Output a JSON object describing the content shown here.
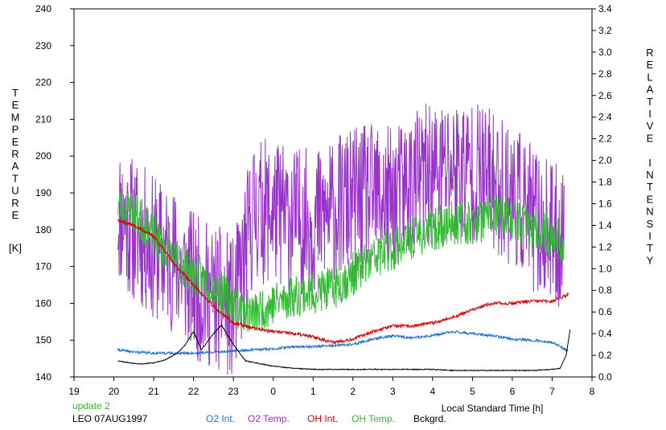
{
  "chart_data": {
    "type": "line",
    "ylabel_left_letters": [
      "T",
      "E",
      "M",
      "P",
      "E",
      "R",
      "A",
      "T",
      "U",
      "R",
      "E"
    ],
    "ylabel_left_unit": "[K]",
    "ylabel_right_letters": [
      "R",
      "E",
      "L",
      "A",
      "T",
      "I",
      "V",
      "E",
      " ",
      "I",
      "N",
      "T",
      "E",
      "N",
      "S",
      "I",
      "T",
      "Y"
    ],
    "xlabel": "Local Standard Time [h]",
    "x_ticks": [
      "19",
      "20",
      "21",
      "22",
      "23",
      "0",
      "1",
      "2",
      "3",
      "4",
      "5",
      "6",
      "7",
      "8"
    ],
    "xlim": [
      19,
      32
    ],
    "ylim_left": [
      140,
      240
    ],
    "yticks_left": [
      140,
      150,
      160,
      170,
      180,
      190,
      200,
      210,
      220,
      230,
      240
    ],
    "ylim_right": [
      0.0,
      3.4
    ],
    "yticks_right": [
      "0.0",
      "0.2",
      "0.4",
      "0.6",
      "0.8",
      "1.0",
      "1.2",
      "1.4",
      "1.6",
      "1.8",
      "2.0",
      "2.2",
      "2.4",
      "2.6",
      "2.8",
      "3.0",
      "3.2",
      "3.4"
    ],
    "grid": false,
    "legend": {
      "placement": "bottom",
      "status": "update 2",
      "station": "LEO 07AUG1997",
      "items": [
        {
          "name": "O2 Int.",
          "color": "#1f6fd6"
        },
        {
          "name": "O2 Temp.",
          "color": "#9933cc"
        },
        {
          "name": "OH Int.",
          "color": "#dd0000"
        },
        {
          "name": "OH Temp.",
          "color": "#33bb33"
        },
        {
          "name": "Bckgrd.",
          "color": "#000000"
        }
      ]
    },
    "series": [
      {
        "name": "O2 Temp.",
        "axis": "left",
        "color": "#9933cc",
        "noise": 20,
        "seed": 11,
        "x": [
          20.1,
          20.5,
          21.0,
          21.5,
          21.8,
          22.0,
          22.2,
          22.5,
          22.8,
          23.0,
          23.2,
          23.5,
          24.0,
          24.5,
          25.0,
          25.5,
          26.0,
          26.5,
          27.0,
          27.5,
          28.0,
          28.5,
          29.0,
          29.5,
          30.0,
          30.5,
          31.0,
          31.3
        ],
        "y": [
          185,
          180,
          175,
          172,
          168,
          165,
          163,
          162,
          160,
          158,
          168,
          185,
          185,
          183,
          182,
          185,
          188,
          189,
          188,
          193,
          195,
          197,
          196,
          193,
          190,
          183,
          178,
          178
        ]
      },
      {
        "name": "OH Temp.",
        "axis": "left",
        "color": "#33bb33",
        "noise": 6,
        "seed": 23,
        "x": [
          20.1,
          20.5,
          21.0,
          21.5,
          22.0,
          22.5,
          23.0,
          23.5,
          24.0,
          24.5,
          25.0,
          25.5,
          26.0,
          26.5,
          27.0,
          27.5,
          28.0,
          28.5,
          29.0,
          29.5,
          30.0,
          30.5,
          31.0,
          31.3
        ],
        "y": [
          187,
          185,
          178,
          172,
          168,
          165,
          160,
          157,
          160,
          162,
          163,
          164,
          168,
          172,
          175,
          178,
          180,
          182,
          182,
          184,
          183,
          180,
          178,
          176
        ]
      },
      {
        "name": "OH Int.",
        "axis": "right",
        "color": "#dd0000",
        "noise": 0.015,
        "seed": 37,
        "x": [
          20.1,
          20.5,
          21.0,
          21.5,
          22.0,
          22.5,
          23.0,
          23.5,
          24.0,
          24.5,
          25.0,
          25.5,
          26.0,
          26.5,
          27.0,
          27.5,
          28.0,
          28.5,
          29.0,
          29.5,
          30.0,
          30.5,
          31.0,
          31.4
        ],
        "y": [
          1.45,
          1.4,
          1.3,
          1.05,
          0.85,
          0.65,
          0.5,
          0.45,
          0.42,
          0.4,
          0.37,
          0.32,
          0.35,
          0.42,
          0.47,
          0.47,
          0.5,
          0.55,
          0.62,
          0.68,
          0.68,
          0.7,
          0.7,
          0.76
        ]
      },
      {
        "name": "O2 Int.",
        "axis": "right",
        "color": "#1f6fd6",
        "noise": 0.012,
        "seed": 41,
        "x": [
          20.1,
          20.5,
          21.0,
          21.5,
          22.0,
          22.5,
          23.0,
          23.5,
          24.0,
          24.5,
          25.0,
          25.5,
          26.0,
          26.5,
          27.0,
          27.5,
          28.0,
          28.5,
          29.0,
          29.5,
          30.0,
          30.5,
          31.0,
          31.4
        ],
        "y": [
          0.25,
          0.23,
          0.22,
          0.22,
          0.22,
          0.23,
          0.24,
          0.25,
          0.26,
          0.28,
          0.28,
          0.29,
          0.3,
          0.35,
          0.38,
          0.36,
          0.38,
          0.42,
          0.4,
          0.38,
          0.35,
          0.34,
          0.32,
          0.24
        ]
      },
      {
        "name": "Bckgrd.",
        "axis": "right",
        "color": "#000000",
        "noise": 0.004,
        "seed": 53,
        "x": [
          20.1,
          20.4,
          20.7,
          21.0,
          21.3,
          21.6,
          21.8,
          22.0,
          22.2,
          22.5,
          22.7,
          23.0,
          23.3,
          23.7,
          24.0,
          24.5,
          25.0,
          25.5,
          26.0,
          26.5,
          27.0,
          27.5,
          28.0,
          28.5,
          29.0,
          29.5,
          30.0,
          30.5,
          31.0,
          31.2,
          31.35,
          31.45
        ],
        "y": [
          0.15,
          0.13,
          0.12,
          0.13,
          0.16,
          0.22,
          0.3,
          0.42,
          0.25,
          0.4,
          0.48,
          0.3,
          0.15,
          0.12,
          0.1,
          0.08,
          0.07,
          0.07,
          0.07,
          0.07,
          0.07,
          0.07,
          0.07,
          0.06,
          0.06,
          0.06,
          0.06,
          0.06,
          0.07,
          0.08,
          0.2,
          0.44
        ]
      }
    ]
  }
}
